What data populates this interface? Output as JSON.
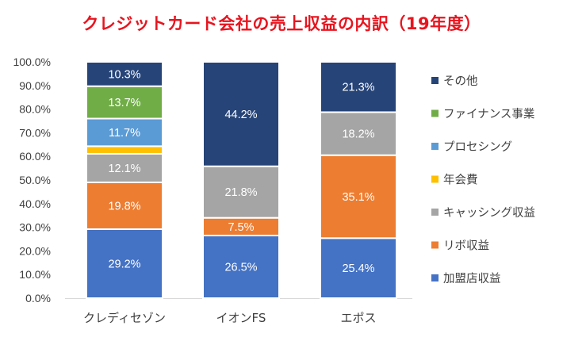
{
  "chart_data": {
    "type": "bar",
    "stacked": true,
    "title": "クレジットカード会社の売上収益の内訳（19年度）",
    "categories": [
      "クレディセゾン",
      "イオンFS",
      "エポス"
    ],
    "series": [
      {
        "name": "加盟店収益",
        "color": "#4472c4",
        "values": [
          29.2,
          26.5,
          25.4
        ],
        "labels": [
          "29.2%",
          "26.5%",
          "25.4%"
        ]
      },
      {
        "name": "リボ収益",
        "color": "#ed7d31",
        "values": [
          19.8,
          7.5,
          35.1
        ],
        "labels": [
          "19.8%",
          "7.5%",
          "35.1%"
        ]
      },
      {
        "name": "キャッシング収益",
        "color": "#a5a5a5",
        "values": [
          12.1,
          21.8,
          18.2
        ],
        "labels": [
          "12.1%",
          "21.8%",
          "18.2%"
        ]
      },
      {
        "name": "年会費",
        "color": "#ffc000",
        "values": [
          3.2,
          0,
          0
        ],
        "labels": [
          "",
          "",
          ""
        ]
      },
      {
        "name": "プロセシング",
        "color": "#5b9bd5",
        "values": [
          11.7,
          0,
          0
        ],
        "labels": [
          "11.7%",
          "",
          ""
        ]
      },
      {
        "name": "ファイナンス事業",
        "color": "#70ad47",
        "values": [
          13.7,
          0,
          0
        ],
        "labels": [
          "13.7%",
          "",
          ""
        ]
      },
      {
        "name": "その他",
        "color": "#264478",
        "values": [
          10.3,
          44.2,
          21.3
        ],
        "labels": [
          "10.3%",
          "44.2%",
          "21.3%"
        ]
      }
    ],
    "ylim": [
      0,
      100
    ],
    "y_ticks": [
      "0.0%",
      "10.0%",
      "20.0%",
      "30.0%",
      "40.0%",
      "50.0%",
      "60.0%",
      "70.0%",
      "80.0%",
      "90.0%",
      "100.0%"
    ],
    "grid": false,
    "legend_position": "right"
  }
}
